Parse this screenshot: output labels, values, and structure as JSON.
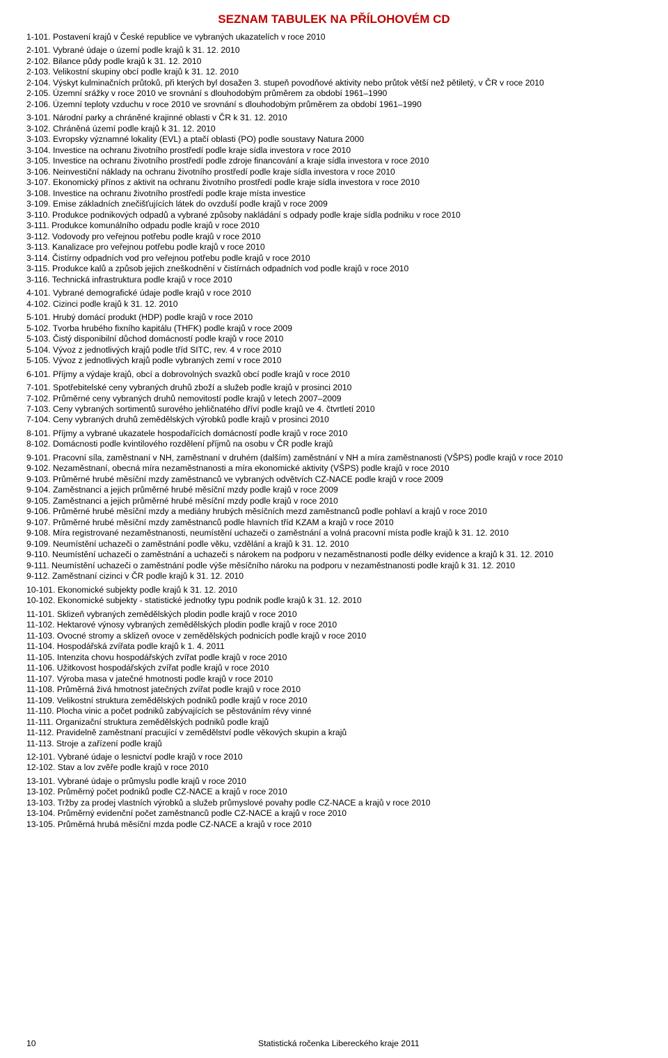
{
  "title": "SEZNAM TABULEK NA PŘÍLOHOVÉM CD",
  "colors": {
    "title": "#c00000",
    "text": "#000000",
    "background": "#ffffff"
  },
  "typography": {
    "title_fontsize": 17,
    "body_fontsize": 12.2,
    "font_family": "Arial"
  },
  "sections": [
    {
      "items": [
        {
          "num": "1-101.",
          "text": "Postavení krajů v České republice ve vybraných ukazatelích v roce 2010"
        }
      ]
    },
    {
      "items": [
        {
          "num": "2-101.",
          "text": "Vybrané údaje o území podle krajů k 31. 12. 2010"
        },
        {
          "num": "2-102.",
          "text": "Bilance půdy podle krajů k 31. 12. 2010"
        },
        {
          "num": "2-103.",
          "text": "Velikostní skupiny obcí podle krajů k 31. 12. 2010"
        },
        {
          "num": "2-104.",
          "text": "Výskyt kulminačních průtoků, při kterých byl dosažen 3. stupeň povodňové aktivity nebo průtok větší než pětiletý, v ČR v roce 2010"
        },
        {
          "num": "2-105.",
          "text": "Územní srážky v roce 2010 ve srovnání s dlouhodobým průměrem za období 1961–1990"
        },
        {
          "num": "2-106.",
          "text": "Územní teploty vzduchu v roce 2010 ve srovnání s dlouhodobým průměrem za období 1961–1990"
        }
      ]
    },
    {
      "items": [
        {
          "num": "3-101.",
          "text": "Národní parky a chráněné krajinné oblasti v ČR k 31. 12. 2010"
        },
        {
          "num": "3-102.",
          "text": "Chráněná území podle krajů k 31. 12. 2010"
        },
        {
          "num": "3-103.",
          "text": "Evropsky významné lokality (EVL) a ptačí oblasti (PO) podle soustavy Natura 2000"
        },
        {
          "num": "3-104.",
          "text": "Investice na ochranu životního prostředí podle kraje sídla investora v roce 2010"
        },
        {
          "num": "3-105.",
          "text": "Investice na ochranu životního prostředí podle zdroje financování a kraje sídla investora v roce 2010"
        },
        {
          "num": "3-106.",
          "text": "Neinvestiční náklady na ochranu životního prostředí podle kraje sídla investora v roce 2010"
        },
        {
          "num": "3-107.",
          "text": "Ekonomický přínos z aktivit na ochranu životního prostředí podle kraje sídla investora v roce 2010"
        },
        {
          "num": "3-108.",
          "text": "Investice na ochranu životního prostředí podle kraje místa investice"
        },
        {
          "num": "3-109.",
          "text": "Emise základních znečišťujících látek do ovzduší podle krajů v roce 2009"
        },
        {
          "num": "3-110.",
          "text": "Produkce podnikových odpadů a vybrané způsoby nakládání s odpady podle kraje sídla podniku v roce 2010"
        },
        {
          "num": "3-111.",
          "text": "Produkce komunálního odpadu podle krajů v roce 2010"
        },
        {
          "num": "3-112.",
          "text": "Vodovody pro veřejnou potřebu podle krajů v roce 2010"
        },
        {
          "num": "3-113.",
          "text": "Kanalizace pro veřejnou potřebu podle krajů v roce 2010"
        },
        {
          "num": "3-114.",
          "text": "Čistírny odpadních vod pro veřejnou potřebu podle krajů v roce 2010"
        },
        {
          "num": "3-115.",
          "text": "Produkce kalů a způsob jejich zneškodnění v čistírnách odpadních vod podle krajů v roce 2010"
        },
        {
          "num": "3-116.",
          "text": "Technická infrastruktura podle krajů v roce 2010"
        }
      ]
    },
    {
      "items": [
        {
          "num": "4-101.",
          "text": "Vybrané demografické údaje podle krajů v roce 2010"
        },
        {
          "num": "4-102.",
          "text": "Cizinci podle krajů k 31. 12. 2010"
        }
      ]
    },
    {
      "items": [
        {
          "num": "5-101.",
          "text": "Hrubý domácí produkt (HDP) podle krajů v roce 2010"
        },
        {
          "num": "5-102.",
          "text": "Tvorba hrubého fixního kapitálu (THFK) podle krajů v roce 2009"
        },
        {
          "num": "5-103.",
          "text": "Čistý disponibilní důchod domácností podle krajů v roce 2010"
        },
        {
          "num": "5-104.",
          "text": "Vývoz z jednotlivých krajů podle tříd SITC, rev. 4 v roce 2010"
        },
        {
          "num": "5-105.",
          "text": "Vývoz z jednotlivých krajů podle vybraných zemí v roce 2010"
        }
      ]
    },
    {
      "items": [
        {
          "num": "6-101.",
          "text": "Příjmy a výdaje krajů, obcí a dobrovolných svazků obcí podle krajů v roce 2010"
        }
      ]
    },
    {
      "items": [
        {
          "num": "7-101.",
          "text": "Spotřebitelské ceny vybraných druhů zboží a služeb podle krajů v prosinci 2010"
        },
        {
          "num": "7-102.",
          "text": "Průměrné ceny vybraných druhů nemovitostí podle krajů v letech 2007–2009"
        },
        {
          "num": "7-103.",
          "text": "Ceny vybraných sortimentů surového jehličnatého dříví podle krajů ve 4. čtvrtletí 2010"
        },
        {
          "num": "7-104.",
          "text": "Ceny vybraných druhů zemědělských výrobků podle krajů v prosinci 2010"
        }
      ]
    },
    {
      "items": [
        {
          "num": "8-101.",
          "text": "Příjmy a vybrané ukazatele hospodařících domácností podle krajů v roce 2010"
        },
        {
          "num": "8-102.",
          "text": "Domácnosti podle kvintilového rozdělení příjmů na osobu v ČR podle krajů"
        }
      ]
    },
    {
      "items": [
        {
          "num": "9-101.",
          "text": "Pracovní síla, zaměstnaní v NH, zaměstnaní v druhém (dalším) zaměstnání v NH a míra zaměstnanosti (VŠPS) podle krajů v roce 2010"
        },
        {
          "num": "9-102.",
          "text": "Nezaměstnaní, obecná míra nezaměstnanosti a míra ekonomické aktivity (VŠPS) podle krajů v roce 2010"
        },
        {
          "num": "9-103.",
          "text": "Průměrné hrubé měsíční mzdy zaměstnanců ve vybraných odvětvích CZ-NACE podle krajů v roce 2009"
        },
        {
          "num": "9-104.",
          "text": "Zaměstnanci a jejich průměrné hrubé měsíční mzdy podle krajů v roce 2009"
        },
        {
          "num": "9-105.",
          "text": "Zaměstnanci a jejich průměrné hrubé měsíční mzdy podle krajů v roce 2010"
        },
        {
          "num": "9-106.",
          "text": "Průměrné hrubé měsíční mzdy a mediány hrubých měsíčních mezd zaměstnanců podle pohlaví a krajů v roce 2010"
        },
        {
          "num": "9-107.",
          "text": "Průměrné hrubé měsíční mzdy zaměstnanců podle hlavních tříd KZAM a krajů v roce 2010"
        },
        {
          "num": "9-108.",
          "text": "Míra registrované nezaměstnanosti, neumístění uchazeči o zaměstnání a volná pracovní místa podle krajů k 31. 12. 2010"
        },
        {
          "num": "9-109.",
          "text": "Neumístění uchazeči o zaměstnání podle věku, vzdělání a krajů k 31. 12. 2010"
        },
        {
          "num": "9-110.",
          "text": "Neumístění uchazeči o zaměstnání a uchazeči s nárokem na podporu v nezaměstnanosti podle délky evidence a krajů k 31. 12. 2010"
        },
        {
          "num": "9-111.",
          "text": "Neumístění uchazeči o zaměstnání podle výše měsíčního nároku na podporu v nezaměstnanosti podle krajů k 31. 12. 2010"
        },
        {
          "num": "9-112.",
          "text": "Zaměstnaní cizinci v ČR podle krajů k 31. 12. 2010"
        }
      ]
    },
    {
      "items": [
        {
          "num": "10-101.",
          "text": "Ekonomické subjekty podle krajů k 31. 12. 2010"
        },
        {
          "num": "10-102.",
          "text": "Ekonomické subjekty - statistické jednotky typu podnik podle krajů k 31. 12. 2010"
        }
      ]
    },
    {
      "items": [
        {
          "num": "11-101.",
          "text": "Sklizeň vybraných zemědělských plodin podle krajů v roce 2010"
        },
        {
          "num": "11-102.",
          "text": "Hektarové výnosy vybraných zemědělských plodin podle krajů v roce 2010"
        },
        {
          "num": "11-103.",
          "text": "Ovocné stromy a sklizeň ovoce v zemědělských podnicích podle krajů v roce 2010"
        },
        {
          "num": "11-104.",
          "text": "Hospodářská zvířata podle krajů k 1. 4. 2011"
        },
        {
          "num": "11-105.",
          "text": "Intenzita chovu hospodářských zvířat podle krajů v roce 2010"
        },
        {
          "num": "11-106.",
          "text": "Užitkovost hospodářských zvířat podle krajů v roce 2010"
        },
        {
          "num": "11-107.",
          "text": "Výroba masa v jatečné hmotnosti podle krajů v roce 2010"
        },
        {
          "num": "11-108.",
          "text": "Průměrná živá hmotnost jatečných zvířat podle krajů v roce 2010"
        },
        {
          "num": "11-109.",
          "text": "Velikostní struktura zemědělských podniků podle krajů v roce 2010"
        },
        {
          "num": "11-110.",
          "text": "Plocha vinic a počet podniků zabývajících se pěstováním révy vinné"
        },
        {
          "num": "11-111.",
          "text": "Organizační struktura zemědělských podniků podle krajů"
        },
        {
          "num": "11-112.",
          "text": "Pravidelně zaměstnaní pracující v zemědělství podle věkových skupin a krajů"
        },
        {
          "num": "11-113.",
          "text": "Stroje a zařízení podle krajů"
        }
      ]
    },
    {
      "items": [
        {
          "num": "12-101.",
          "text": "Vybrané údaje o lesnictví podle krajů v roce 2010"
        },
        {
          "num": "12-102.",
          "text": "Stav a lov zvěře podle krajů v roce 2010"
        }
      ]
    },
    {
      "items": [
        {
          "num": "13-101.",
          "text": "Vybrané údaje o průmyslu podle krajů v roce 2010"
        },
        {
          "num": "13-102.",
          "text": "Průměrný počet podniků podle CZ-NACE a krajů v roce 2010"
        },
        {
          "num": "13-103.",
          "text": "Tržby za prodej vlastních výrobků a služeb průmyslové povahy podle CZ-NACE a krajů v roce 2010"
        },
        {
          "num": "13-104.",
          "text": "Průměrný evidenční počet zaměstnanců podle CZ-NACE a krajů v roce 2010"
        },
        {
          "num": "13-105.",
          "text": "Průměrná hrubá měsíční mzda podle CZ-NACE a krajů v roce 2010"
        }
      ]
    }
  ],
  "footer": {
    "page": "10",
    "text": "Statistická ročenka Libereckého kraje 2011"
  }
}
